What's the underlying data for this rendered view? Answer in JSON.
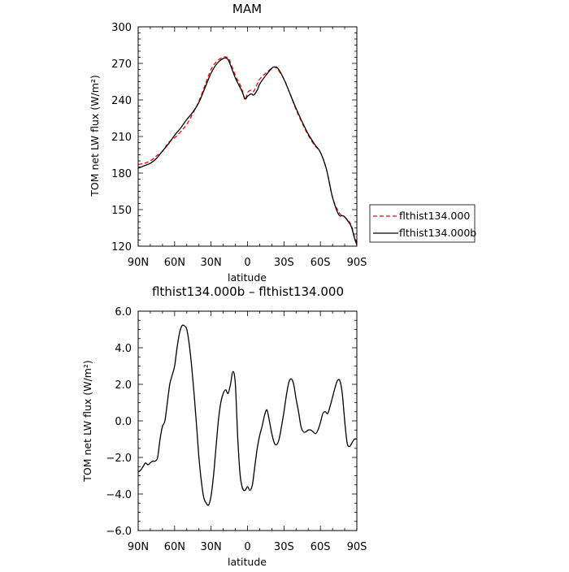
{
  "chart_data": [
    {
      "type": "line",
      "title": "MAM",
      "xlabel": "latitude",
      "ylabel": "TOM net LW flux (W/m²)",
      "xlim": [
        90,
        -90
      ],
      "ylim": [
        120,
        300
      ],
      "x_ticks": [
        90,
        60,
        30,
        0,
        -30,
        -60,
        -90
      ],
      "x_tick_labels": [
        "90N",
        "60N",
        "30N",
        "0",
        "30S",
        "60S",
        "90S"
      ],
      "y_ticks": [
        120,
        150,
        180,
        210,
        240,
        270,
        300
      ],
      "y_tick_labels": [
        "120",
        "150",
        "180",
        "210",
        "240",
        "270",
        "300"
      ],
      "legend": {
        "placement": "right-outside",
        "entries": [
          "flthist134.000",
          "flthist134.000b"
        ]
      },
      "series": [
        {
          "name": "flthist134.000",
          "color": "#ff0000",
          "dash": "dashed",
          "x": [
            90,
            85,
            80,
            75,
            70,
            65,
            60,
            55,
            50,
            45,
            40,
            35,
            30,
            25,
            20,
            17,
            15,
            10,
            5,
            2,
            0,
            -3,
            -5,
            -8,
            -10,
            -15,
            -20,
            -22,
            -25,
            -30,
            -35,
            -40,
            -45,
            -50,
            -55,
            -60,
            -65,
            -70,
            -75,
            -78,
            -80,
            -85,
            -88,
            -90
          ],
          "y": [
            187,
            188,
            190,
            194,
            198,
            205,
            209,
            214,
            220,
            229,
            239,
            252,
            265,
            272,
            275,
            275,
            273,
            260,
            250,
            240,
            246,
            248,
            247,
            253,
            257,
            262,
            266,
            267,
            265,
            257,
            245,
            232,
            221,
            211,
            203,
            197,
            183,
            160,
            148,
            145,
            144,
            138,
            128,
            122
          ]
        },
        {
          "name": "flthist134.000b",
          "color": "#000000",
          "dash": "solid",
          "x": [
            90,
            85,
            80,
            75,
            70,
            65,
            60,
            55,
            50,
            45,
            40,
            35,
            30,
            25,
            20,
            17,
            15,
            10,
            5,
            2,
            0,
            -3,
            -5,
            -8,
            -10,
            -15,
            -20,
            -22,
            -25,
            -30,
            -35,
            -40,
            -45,
            -50,
            -55,
            -60,
            -65,
            -70,
            -75,
            -78,
            -80,
            -85,
            -88,
            -90
          ],
          "y": [
            184,
            186,
            188,
            192,
            198,
            204,
            211,
            217,
            224,
            230,
            238,
            250,
            262,
            270,
            274,
            274,
            271,
            258,
            248,
            241,
            243,
            245,
            244,
            248,
            253,
            260,
            266,
            267,
            266,
            257,
            245,
            233,
            222,
            212,
            204,
            197,
            183,
            160,
            146,
            145,
            144,
            137,
            127,
            121
          ]
        }
      ]
    },
    {
      "type": "line",
      "title": "flthist134.000b – flthist134.000",
      "xlabel": "latitude",
      "ylabel": "TOM net LW flux (W/m²)",
      "xlim": [
        90,
        -90
      ],
      "ylim": [
        -6,
        6
      ],
      "x_ticks": [
        90,
        60,
        30,
        0,
        -30,
        -60,
        -90
      ],
      "x_tick_labels": [
        "90N",
        "60N",
        "30N",
        "0",
        "30S",
        "60S",
        "90S"
      ],
      "y_ticks": [
        -6,
        -4,
        -2,
        0,
        2,
        4,
        6
      ],
      "y_tick_labels": [
        "−6.0",
        "−4.0",
        "−2.0",
        "0.0",
        "2.0",
        "4.0",
        "6.0"
      ],
      "series": [
        {
          "color": "#000000",
          "dash": "solid",
          "x": [
            90,
            88,
            86,
            84,
            82,
            80,
            78,
            76,
            74,
            72,
            70,
            68,
            66,
            64,
            62,
            60,
            58,
            56,
            54,
            52,
            50,
            48,
            46,
            44,
            42,
            40,
            38,
            36,
            34,
            32,
            30,
            28,
            26,
            24,
            22,
            20,
            18,
            16,
            14,
            12,
            10,
            8,
            6,
            4,
            2,
            0,
            -2,
            -4,
            -6,
            -8,
            -10,
            -12,
            -14,
            -16,
            -18,
            -20,
            -22,
            -24,
            -26,
            -28,
            -30,
            -32,
            -34,
            -36,
            -38,
            -40,
            -42,
            -44,
            -46,
            -48,
            -50,
            -52,
            -54,
            -56,
            -58,
            -60,
            -62,
            -64,
            -66,
            -68,
            -70,
            -72,
            -74,
            -76,
            -78,
            -80,
            -82,
            -84,
            -86,
            -88,
            -90
          ],
          "y": [
            -2.8,
            -2.7,
            -2.5,
            -2.3,
            -2.4,
            -2.3,
            -2.2,
            -2.2,
            -2.0,
            -1.0,
            -0.3,
            0.0,
            1.0,
            2.0,
            2.5,
            3.0,
            4.0,
            4.8,
            5.2,
            5.2,
            5.0,
            4.2,
            3.0,
            1.5,
            -0.2,
            -2.0,
            -3.3,
            -4.2,
            -4.5,
            -4.6,
            -4.1,
            -3.0,
            -1.5,
            0.0,
            1.0,
            1.5,
            1.7,
            1.5,
            2.0,
            2.7,
            2.0,
            -1.0,
            -3.0,
            -3.7,
            -3.8,
            -3.6,
            -3.8,
            -3.5,
            -2.5,
            -1.5,
            -0.8,
            -0.3,
            0.3,
            0.6,
            0.0,
            -0.7,
            -1.2,
            -1.3,
            -1.0,
            -0.3,
            0.5,
            1.4,
            2.1,
            2.3,
            2.0,
            1.2,
            0.5,
            -0.3,
            -0.6,
            -0.6,
            -0.5,
            -0.5,
            -0.6,
            -0.7,
            -0.5,
            -0.1,
            0.4,
            0.5,
            0.4,
            0.8,
            1.3,
            1.8,
            2.2,
            2.2,
            1.5,
            0.0,
            -1.2,
            -1.4,
            -1.2,
            -1.0,
            -1.0
          ]
        }
      ]
    }
  ]
}
